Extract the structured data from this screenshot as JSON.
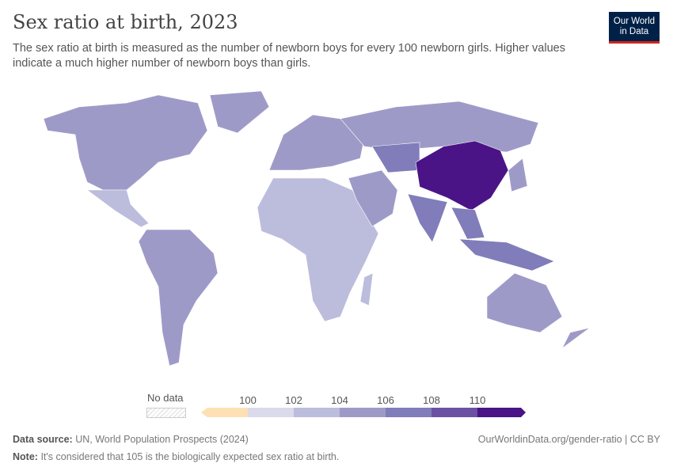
{
  "header": {
    "title": "Sex ratio at birth, 2023",
    "subtitle": "The sex ratio at birth is measured as the number of newborn boys for every 100 newborn girls. Higher values indicate a much higher number of newborn boys than girls."
  },
  "logo": {
    "line1": "Our World",
    "line2": "in Data"
  },
  "legend": {
    "no_data": "No data",
    "ticks": [
      "100",
      "102",
      "104",
      "106",
      "108",
      "110"
    ],
    "colors": {
      "below_100": "#fde0b4",
      "100_102": "#dadaeb",
      "102_104": "#bcbddc",
      "104_106": "#9e9ac8",
      "106_108": "#807dba",
      "108_110": "#6a51a3",
      "above_110": "#4a1486"
    }
  },
  "regions": [
    {
      "name": "North America",
      "bin": "104_106"
    },
    {
      "name": "Greenland",
      "bin": "104_106"
    },
    {
      "name": "Mexico and Central America",
      "bin": "102_104"
    },
    {
      "name": "South America",
      "bin": "104_106"
    },
    {
      "name": "Europe",
      "bin": "104_106"
    },
    {
      "name": "Russia",
      "bin": "104_106"
    },
    {
      "name": "Africa",
      "bin": "102_104"
    },
    {
      "name": "Middle East",
      "bin": "104_106"
    },
    {
      "name": "Central Asia",
      "bin": "106_108"
    },
    {
      "name": "China",
      "bin": "above_110"
    },
    {
      "name": "India",
      "bin": "106_108"
    },
    {
      "name": "Southeast Asia",
      "bin": "106_108"
    },
    {
      "name": "Indonesia",
      "bin": "106_108"
    },
    {
      "name": "Japan",
      "bin": "104_106"
    },
    {
      "name": "Australia",
      "bin": "104_106"
    },
    {
      "name": "New Zealand",
      "bin": "104_106"
    },
    {
      "name": "Madagascar",
      "bin": "102_104"
    }
  ],
  "footer": {
    "source_label": "Data source:",
    "source": "UN, World Population Prospects (2024)",
    "url": "OurWorldinData.org/gender-ratio | CC BY",
    "note_label": "Note:",
    "note": "It's considered that 105 is the biologically expected sex ratio at birth."
  }
}
